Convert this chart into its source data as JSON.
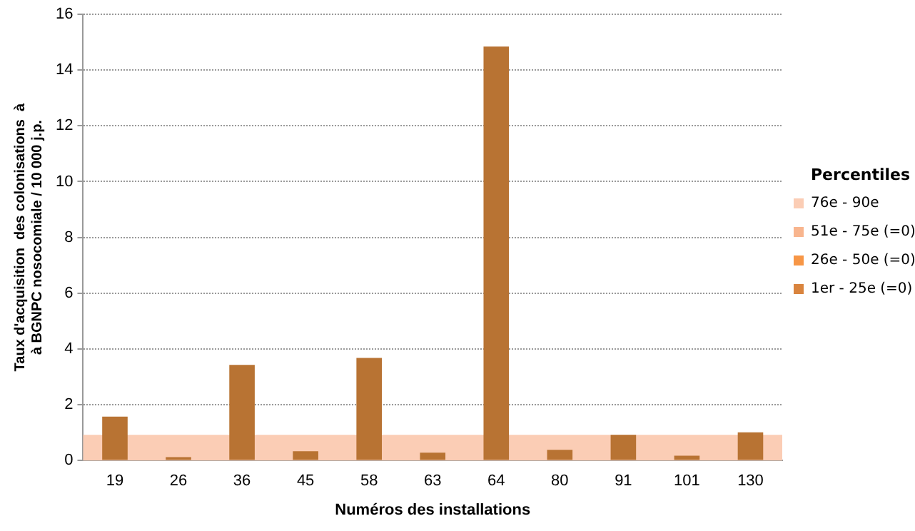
{
  "chart_data": {
    "type": "bar",
    "xlabel": "Numéros des installations",
    "ylabel": "Taux d'acquisition  des colonisations  à\nà BGNPC nosocomiale / 10 000 j.p.",
    "legend_title": "Percentiles",
    "categories": [
      "19",
      "26",
      "36",
      "45",
      "58",
      "63",
      "64",
      "80",
      "91",
      "101",
      "130"
    ],
    "series": [
      {
        "color": "#b87333",
        "values": [
          1.57,
          0.12,
          3.43,
          0.33,
          3.68,
          0.28,
          14.84,
          0.38,
          0.92,
          0.17,
          1.01
        ]
      }
    ],
    "ylim": [
      0,
      16
    ],
    "yticks": [
      0,
      2,
      4,
      6,
      8,
      10,
      12,
      14,
      16
    ],
    "grid": "y",
    "legend": "right",
    "bands": [
      {
        "axis": "y",
        "from": 0,
        "to": 0.92,
        "label": "76e - 90e",
        "color": "#fbcdb5"
      }
    ],
    "annotations": [
      "51e - 75e (=0)",
      "26e - 50e (=0)",
      "1er - 25e (=0)"
    ]
  }
}
